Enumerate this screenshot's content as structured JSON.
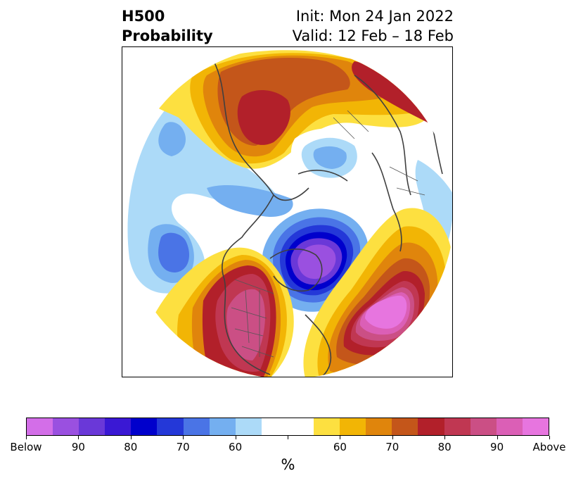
{
  "title": {
    "left_line1": "H500",
    "left_line2": "Probability",
    "right_line1": "Init: Mon 24 Jan 2022",
    "right_line2": "Valid: 12 Feb – 18 Feb"
  },
  "map": {
    "projection": "north-polar-stereographic",
    "features": [
      {
        "name": "above-normal-western-north-america",
        "category": "above",
        "probability_max": "90+"
      },
      {
        "name": "above-normal-central-atlantic",
        "category": "above",
        "probability_max": "90+"
      },
      {
        "name": "above-normal-siberia",
        "category": "above",
        "probability_max": "80"
      },
      {
        "name": "below-normal-hudson-bay-eastern-canada",
        "category": "below",
        "probability_max": "90+"
      },
      {
        "name": "below-normal-north-pacific",
        "category": "below",
        "probability_max": "70"
      },
      {
        "name": "below-normal-scandinavia",
        "category": "below",
        "probability_max": "60"
      }
    ]
  },
  "colorbar": {
    "colors": [
      "#d36ee8",
      "#9a50e0",
      "#6a38d8",
      "#3a18d4",
      "#0000cc",
      "#2438d8",
      "#4a74e6",
      "#74aff0",
      "#acdaf8",
      "#ffffff",
      "#ffffff",
      "#fde040",
      "#f2b505",
      "#e0850c",
      "#c4561a",
      "#b2202a",
      "#c03752",
      "#cb4f85",
      "#db5fb6",
      "#e775df"
    ],
    "tick_labels": [
      "Below",
      "90",
      "80",
      "70",
      "60",
      "",
      "60",
      "70",
      "80",
      "90",
      "Above"
    ],
    "label": "%"
  }
}
